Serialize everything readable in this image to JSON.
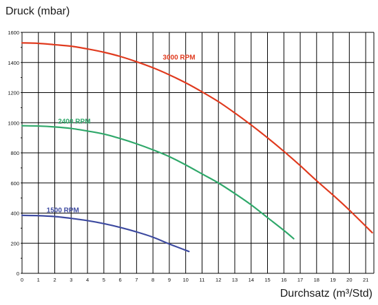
{
  "chart_data": {
    "type": "line",
    "title": "",
    "ylabel": "Druck (mbar)",
    "xlabel": "Durchsatz (m³/Std)",
    "xlim": [
      0,
      21.5
    ],
    "ylim": [
      0,
      1600
    ],
    "x_ticks": [
      0,
      1,
      2,
      3,
      4,
      5,
      6,
      7,
      8,
      9,
      10,
      11,
      12,
      13,
      14,
      15,
      16,
      17,
      18,
      19,
      20,
      21
    ],
    "y_ticks": [
      0,
      200,
      400,
      600,
      800,
      1000,
      1200,
      1400,
      1600
    ],
    "grid": true,
    "series": [
      {
        "name": "3000 RPM",
        "color": "#e03a1e",
        "label_at": [
          8.6,
          1420
        ],
        "x": [
          0,
          1,
          2,
          3,
          4,
          5,
          6,
          7,
          8,
          9,
          10,
          11,
          12,
          13,
          14,
          15,
          16,
          17,
          18,
          19,
          20,
          21.4
        ],
        "y": [
          1530,
          1527,
          1518,
          1508,
          1490,
          1468,
          1440,
          1405,
          1365,
          1318,
          1265,
          1205,
          1140,
          1065,
          985,
          900,
          810,
          715,
          615,
          520,
          420,
          270
        ]
      },
      {
        "name": "2400 RPM",
        "color": "#2fa86a",
        "label_at": [
          2.2,
          995
        ],
        "x": [
          0,
          1,
          2,
          3,
          4,
          5,
          6,
          7,
          8,
          9,
          10,
          11,
          12,
          13,
          14,
          15,
          16,
          16.6
        ],
        "y": [
          980,
          978,
          972,
          962,
          945,
          925,
          895,
          860,
          820,
          775,
          720,
          660,
          600,
          530,
          455,
          370,
          285,
          230
        ]
      },
      {
        "name": "1500 RPM",
        "color": "#3d4aa0",
        "label_at": [
          1.5,
          405
        ],
        "x": [
          0,
          1,
          2,
          3,
          4,
          5,
          6,
          7,
          8,
          9,
          10.2
        ],
        "y": [
          385,
          383,
          377,
          365,
          350,
          330,
          305,
          275,
          240,
          195,
          145
        ]
      }
    ]
  }
}
